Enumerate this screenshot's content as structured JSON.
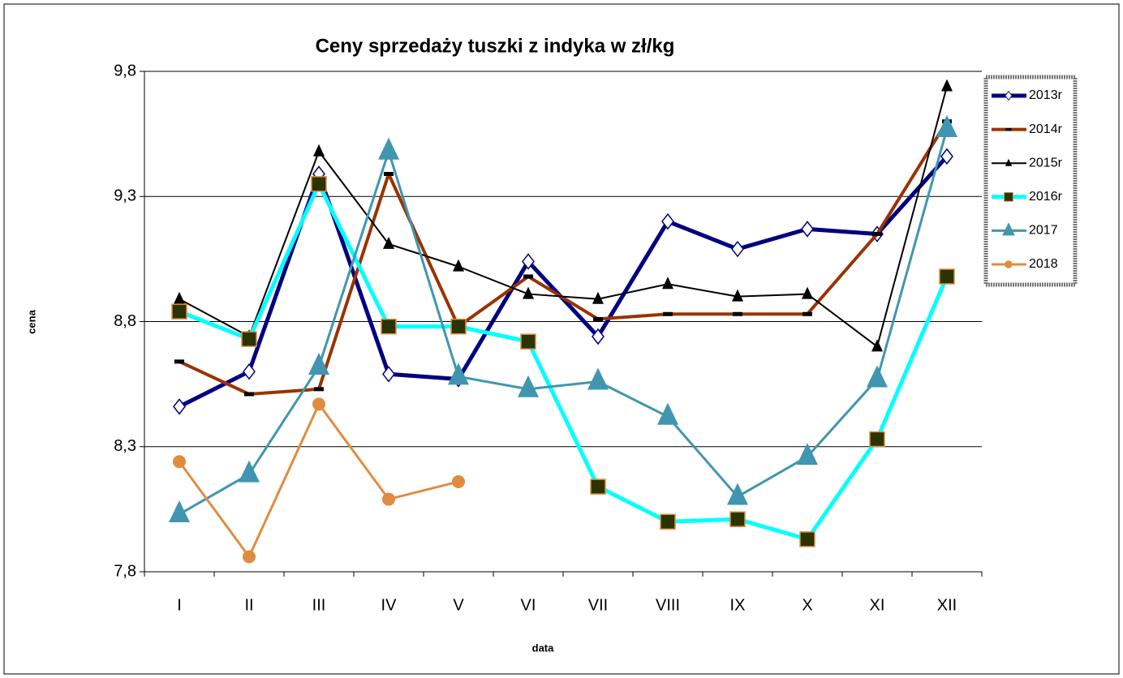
{
  "chart_data": {
    "type": "line",
    "title": "Ceny sprzedaży tuszki z indyka w zł/kg",
    "x_label": "data",
    "y_label": "cena",
    "categories": [
      "I",
      "II",
      "III",
      "IV",
      "V",
      "VI",
      "VII",
      "VIII",
      "IX",
      "X",
      "XI",
      "XII"
    ],
    "ylim": [
      7.8,
      9.8
    ],
    "yticks": [
      {
        "value": 7.8,
        "label": "7,8"
      },
      {
        "value": 8.3,
        "label": "8,3"
      },
      {
        "value": 8.8,
        "label": "8,8"
      },
      {
        "value": 9.3,
        "label": "9,3"
      },
      {
        "value": 9.8,
        "label": "9,8"
      }
    ],
    "grid": true,
    "legend": "right",
    "series": [
      {
        "name": "2013r",
        "color": "#000080",
        "values": [
          8.46,
          8.6,
          9.39,
          8.59,
          8.57,
          9.04,
          8.74,
          9.2,
          9.09,
          9.17,
          9.15,
          9.46
        ]
      },
      {
        "name": "2014r",
        "color": "#993300",
        "values": [
          8.64,
          8.51,
          8.53,
          9.39,
          8.78,
          8.98,
          8.81,
          8.83,
          8.83,
          8.83,
          9.15,
          9.6
        ]
      },
      {
        "name": "2015r",
        "color": "#000000",
        "values": [
          8.89,
          8.74,
          9.48,
          9.11,
          9.02,
          8.91,
          8.89,
          8.95,
          8.9,
          8.91,
          8.7,
          9.74
        ]
      },
      {
        "name": "2016r",
        "color": "#00ffff",
        "values": [
          8.84,
          8.73,
          9.35,
          8.78,
          8.78,
          8.72,
          8.14,
          8.0,
          8.01,
          7.93,
          8.33,
          8.98
        ]
      },
      {
        "name": "2017",
        "color": "#4096b0",
        "values": [
          8.03,
          8.19,
          8.62,
          9.48,
          8.58,
          8.53,
          8.56,
          8.42,
          8.1,
          8.26,
          8.57,
          9.57
        ]
      },
      {
        "name": "2018",
        "color": "#e08c40",
        "values": [
          8.24,
          7.86,
          8.47,
          8.09,
          8.16,
          null,
          null,
          null,
          null,
          null,
          null,
          null
        ]
      }
    ]
  }
}
